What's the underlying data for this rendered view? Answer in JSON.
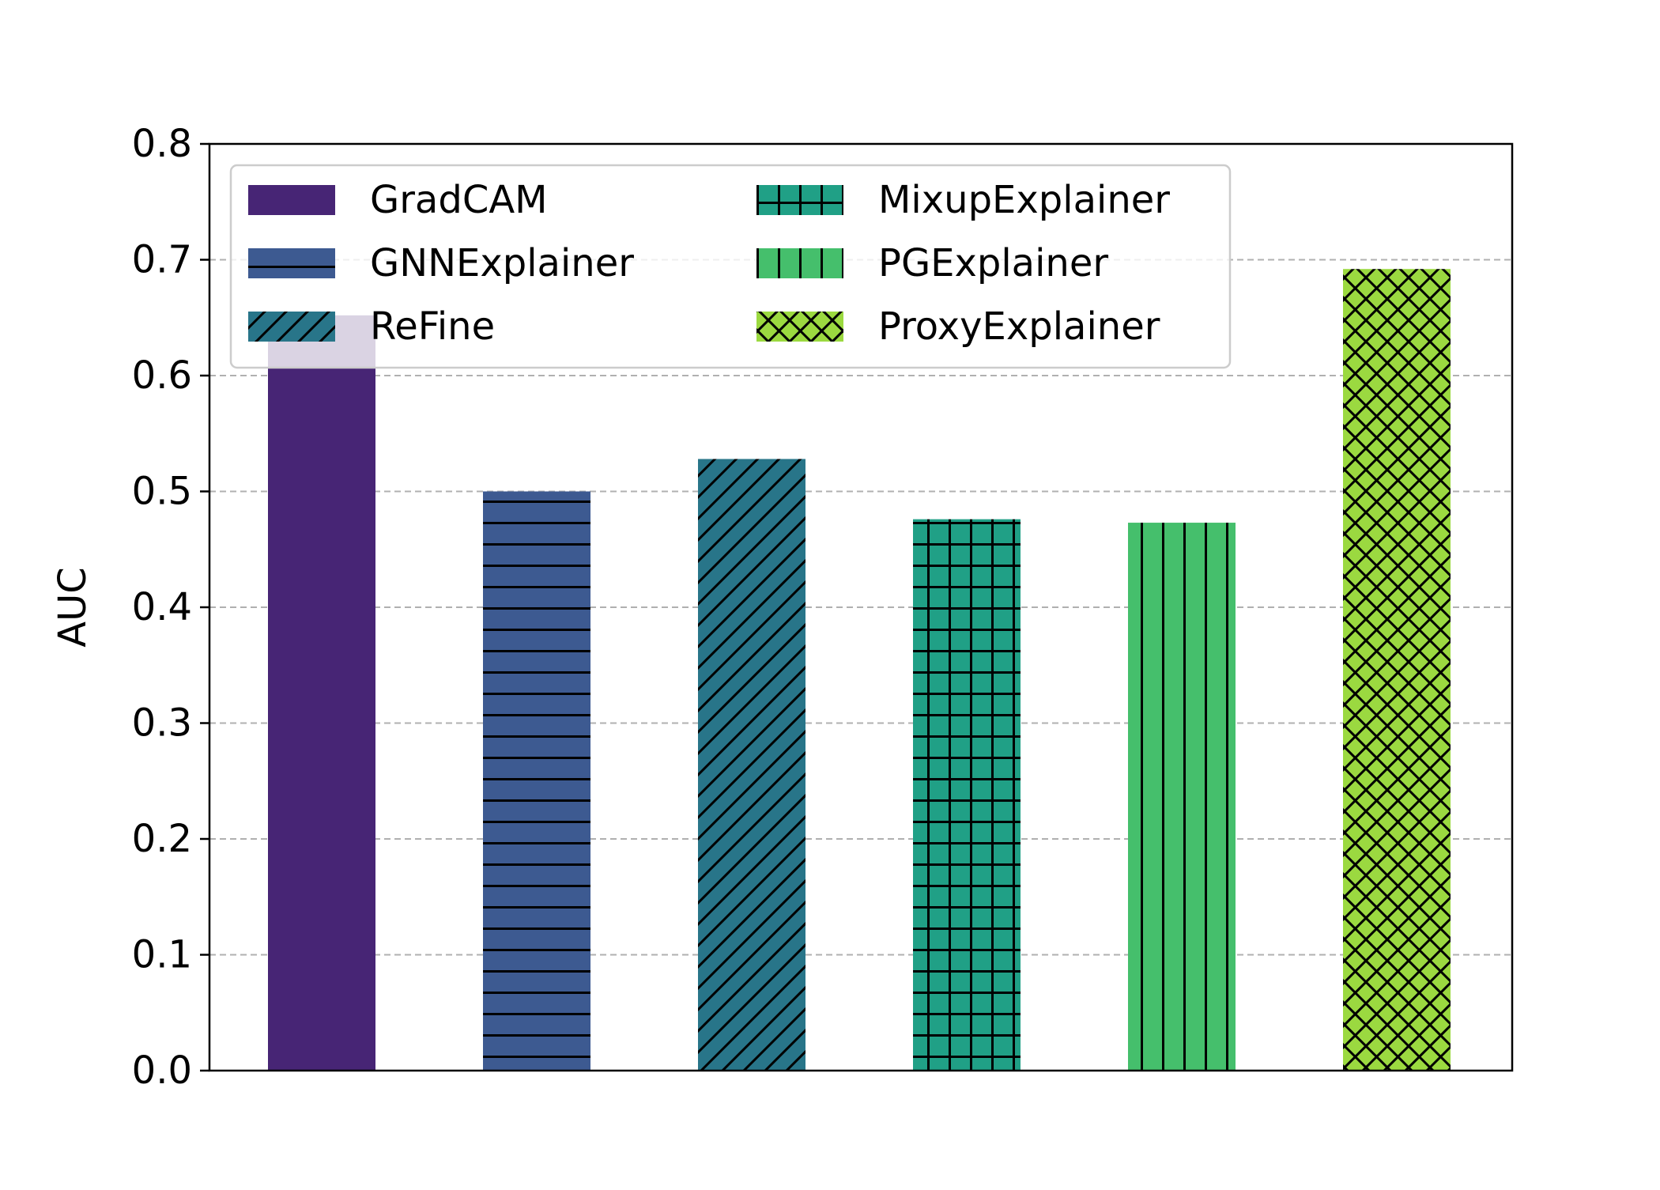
{
  "chart_data": {
    "type": "bar",
    "categories": [
      "GradCAM",
      "GNNExplainer",
      "ReFine",
      "MixupExplainer",
      "PGExplainer",
      "ProxyExplainer"
    ],
    "values": [
      0.652,
      0.5,
      0.528,
      0.476,
      0.473,
      0.692
    ],
    "colors": [
      "#472575",
      "#3d5a91",
      "#287589",
      "#20a086",
      "#45bf6c",
      "#9bd940"
    ],
    "hatches": [
      "none",
      "horizontal",
      "diagonal",
      "grid",
      "vertical",
      "crosshatch"
    ],
    "title": "",
    "xlabel": "",
    "ylabel": "AUC",
    "ylim": [
      0,
      0.8
    ],
    "yticks": [
      "0.0",
      "0.1",
      "0.2",
      "0.3",
      "0.4",
      "0.5",
      "0.6",
      "0.7",
      "0.8"
    ],
    "grid": "horizontal dashed",
    "legend": {
      "placement": "top-left",
      "columns": 2,
      "entries": [
        "GradCAM",
        "GNNExplainer",
        "ReFine",
        "MixupExplainer",
        "PGExplainer",
        "ProxyExplainer"
      ]
    }
  }
}
